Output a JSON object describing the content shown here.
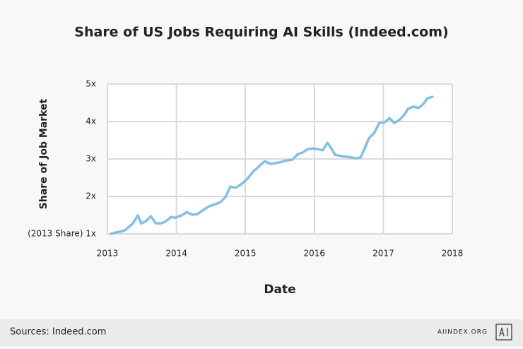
{
  "chart_data": {
    "type": "line",
    "title": "Share of US Jobs Requiring AI Skills (Indeed.com)",
    "x_label": "Date",
    "y_label": "Share of Job Market",
    "x": [
      2013.05,
      2013.13,
      2013.24,
      2013.29,
      2013.37,
      2013.44,
      2013.49,
      2013.56,
      2013.63,
      2013.7,
      2013.78,
      2013.85,
      2013.92,
      2013.98,
      2014.07,
      2014.15,
      2014.23,
      2014.31,
      2014.39,
      2014.48,
      2014.56,
      2014.64,
      2014.71,
      2014.78,
      2014.86,
      2014.95,
      2015.03,
      2015.11,
      2015.19,
      2015.28,
      2015.36,
      2015.44,
      2015.52,
      2015.6,
      2015.68,
      2015.76,
      2015.83,
      2015.9,
      2015.98,
      2016.06,
      2016.12,
      2016.19,
      2016.24,
      2016.3,
      2016.38,
      2016.46,
      2016.53,
      2016.6,
      2016.67,
      2016.73,
      2016.79,
      2016.87,
      2016.94,
      2017.02,
      2017.09,
      2017.16,
      2017.23,
      2017.3,
      2017.36,
      2017.44,
      2017.51,
      2017.58,
      2017.64,
      2017.71
    ],
    "series": [
      {
        "name": "Share of Job Market",
        "color": "#84bfe3",
        "values": [
          1.0,
          1.04,
          1.08,
          1.15,
          1.28,
          1.49,
          1.28,
          1.34,
          1.47,
          1.28,
          1.28,
          1.34,
          1.45,
          1.43,
          1.49,
          1.58,
          1.51,
          1.53,
          1.64,
          1.74,
          1.79,
          1.85,
          1.98,
          2.26,
          2.23,
          2.34,
          2.47,
          2.66,
          2.79,
          2.94,
          2.87,
          2.89,
          2.92,
          2.96,
          2.98,
          3.13,
          3.17,
          3.26,
          3.28,
          3.26,
          3.23,
          3.43,
          3.3,
          3.11,
          3.08,
          3.06,
          3.04,
          3.02,
          3.04,
          3.28,
          3.55,
          3.7,
          3.96,
          3.98,
          4.09,
          3.96,
          4.04,
          4.17,
          4.34,
          4.4,
          4.36,
          4.47,
          4.62,
          4.66
        ]
      }
    ],
    "xlim": [
      2013,
      2018
    ],
    "xticks": [
      2013,
      2014,
      2015,
      2016,
      2017,
      2018
    ],
    "ylim": [
      1,
      5
    ],
    "yticks": [
      {
        "value": 1,
        "label": "(2013 Share) 1x"
      },
      {
        "value": 2,
        "label": "2x"
      },
      {
        "value": 3,
        "label": "3x"
      },
      {
        "value": 4,
        "label": "4x"
      },
      {
        "value": 5,
        "label": "5x"
      }
    ],
    "grid": true,
    "source": "Sources: Indeed.com",
    "brand": "AIINDEX.ORG"
  }
}
